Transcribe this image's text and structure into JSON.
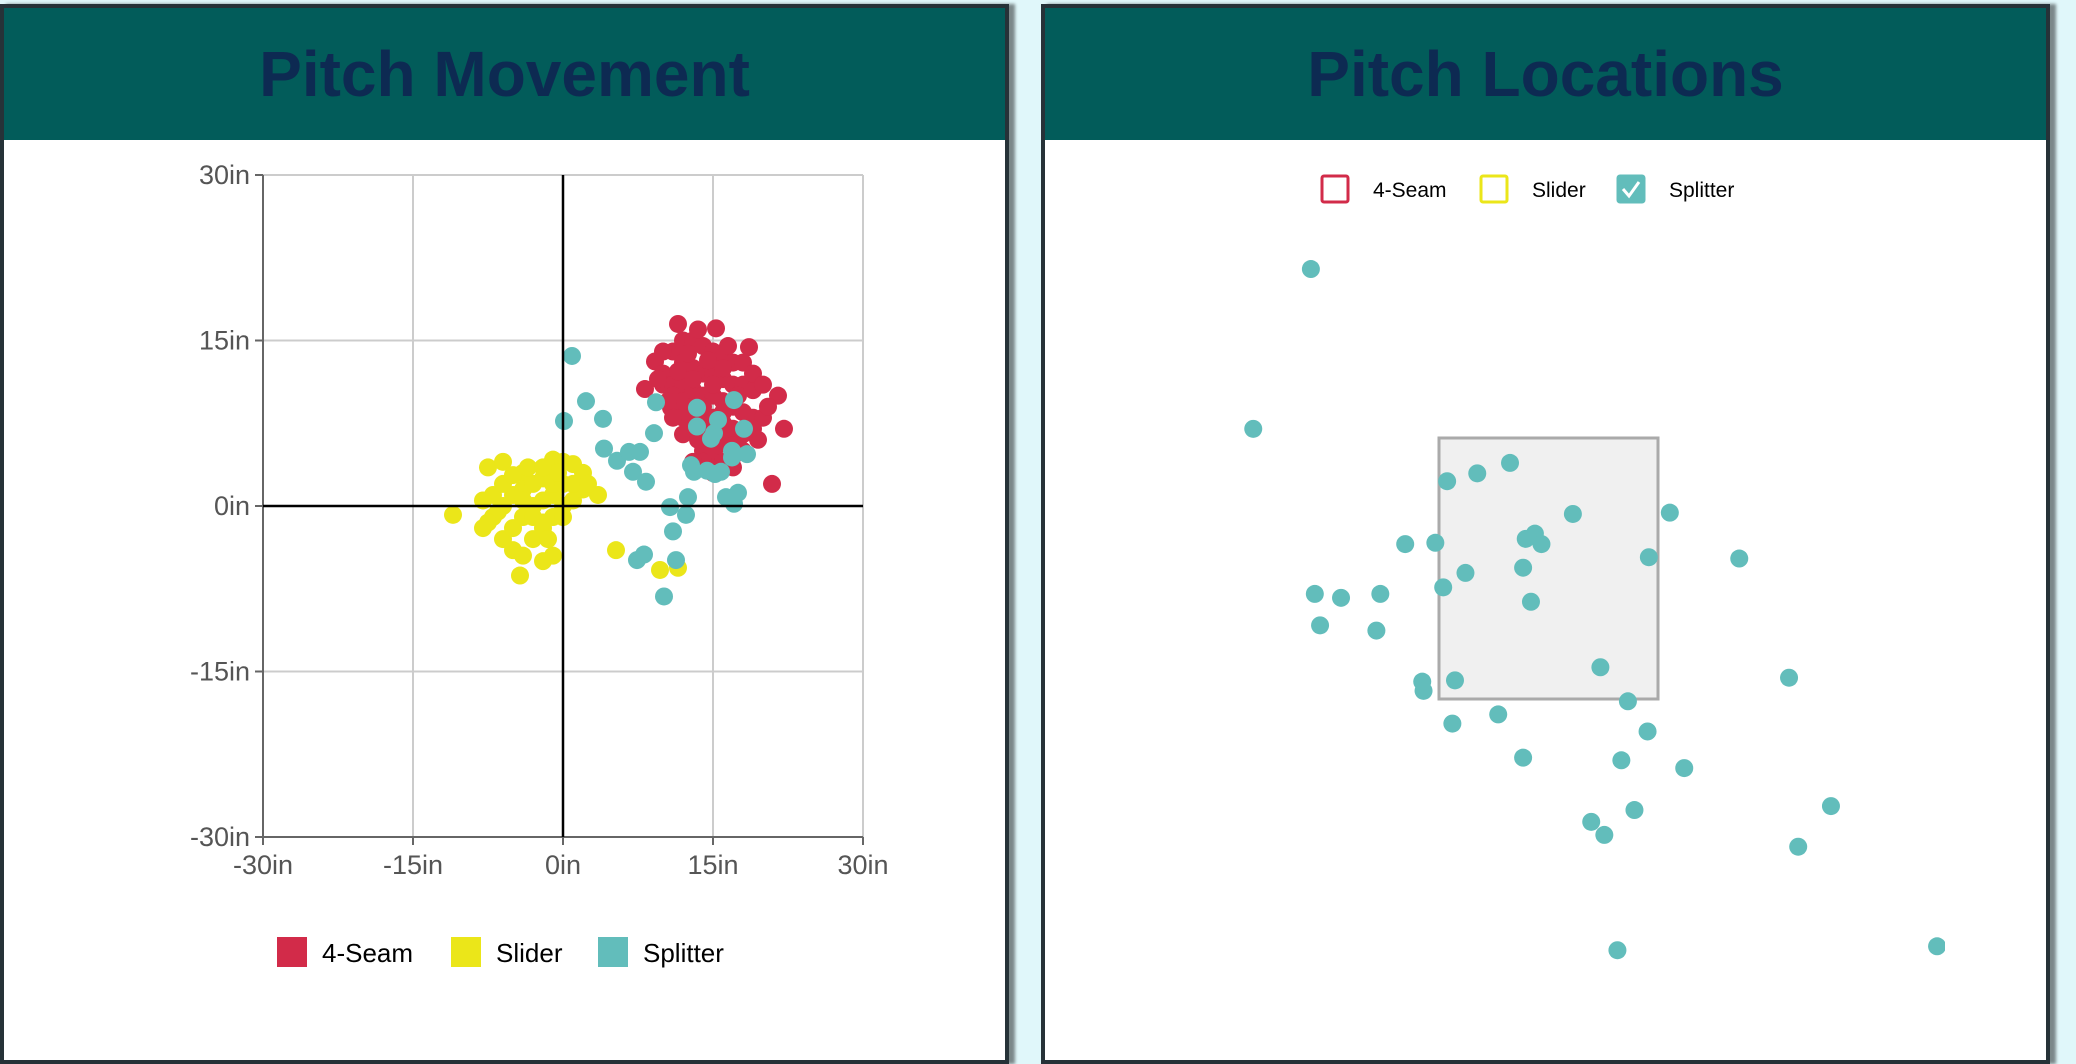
{
  "chart_data": [
    {
      "type": "scatter",
      "title": "Pitch Movement",
      "xlabel": "",
      "ylabel": "",
      "xlim": [
        -30,
        30
      ],
      "ylim": [
        -30,
        30
      ],
      "x_ticks": [
        "-30in",
        "-15in",
        "0in",
        "15in",
        "30in"
      ],
      "y_ticks": [
        "30in",
        "15in",
        "0in",
        "-15in",
        "-30in"
      ],
      "grid": true,
      "legend_position": "bottom",
      "series": [
        {
          "name": "4-Seam",
          "color": "#d22b49",
          "points": [
            [
              11.5,
              16.5
            ],
            [
              15.3,
              16.1
            ],
            [
              18.6,
              14.4
            ],
            [
              21.5,
              10
            ],
            [
              22.1,
              7
            ],
            [
              20.9,
              2
            ],
            [
              10.8,
              8.9
            ],
            [
              8.2,
              10.6
            ],
            [
              9.2,
              13.1
            ],
            [
              10,
              12
            ],
            [
              11,
              14
            ],
            [
              12,
              15
            ],
            [
              13,
              15
            ],
            [
              14,
              14.5
            ],
            [
              15,
              14
            ],
            [
              16,
              13.5
            ],
            [
              17,
              13
            ],
            [
              12,
              13
            ],
            [
              13,
              12.5
            ],
            [
              14,
              12
            ],
            [
              15,
              12
            ],
            [
              16,
              11.5
            ],
            [
              17,
              11
            ],
            [
              18,
              11
            ],
            [
              19,
              10.5
            ],
            [
              10,
              11
            ],
            [
              11,
              11
            ],
            [
              12,
              11
            ],
            [
              13,
              10.5
            ],
            [
              14,
              10
            ],
            [
              15,
              10
            ],
            [
              16,
              9.5
            ],
            [
              17,
              9
            ],
            [
              18,
              8.5
            ],
            [
              19,
              8
            ],
            [
              20,
              8
            ],
            [
              11,
              10
            ],
            [
              12,
              9.5
            ],
            [
              13,
              9
            ],
            [
              14,
              8.5
            ],
            [
              15,
              8
            ],
            [
              16,
              7.5
            ],
            [
              17,
              7
            ],
            [
              18,
              6.5
            ],
            [
              19,
              7
            ],
            [
              12,
              8
            ],
            [
              13,
              7.5
            ],
            [
              14,
              7
            ],
            [
              15,
              6.5
            ],
            [
              16,
              6
            ],
            [
              17,
              5.5
            ],
            [
              18,
              5
            ],
            [
              14,
              5
            ],
            [
              15,
              4.5
            ],
            [
              16,
              4
            ],
            [
              17,
              3.5
            ],
            [
              14,
              4
            ],
            [
              13,
              4
            ],
            [
              15,
              3
            ],
            [
              12,
              6.5
            ],
            [
              11,
              8
            ],
            [
              10.5,
              9.5
            ],
            [
              9.5,
              11.5
            ],
            [
              10,
              14
            ],
            [
              13.5,
              16
            ],
            [
              16.5,
              14.5
            ],
            [
              18,
              13
            ],
            [
              19,
              12
            ],
            [
              20,
              11
            ],
            [
              20.5,
              9
            ],
            [
              19.5,
              6
            ],
            [
              12.5,
              13.8
            ],
            [
              14.5,
              13.2
            ],
            [
              11.5,
              12.2
            ],
            [
              16,
              12.5
            ],
            [
              17.5,
              10
            ],
            [
              13,
              11.5
            ],
            [
              15,
              11
            ],
            [
              14,
              9
            ],
            [
              16,
              8.5
            ],
            [
              13.5,
              6
            ],
            [
              15.5,
              5.5
            ],
            [
              17,
              4.5
            ]
          ]
        },
        {
          "name": "Slider",
          "color": "#ebe619",
          "points": [
            [
              -11,
              -0.8
            ],
            [
              -7.5,
              3.5
            ],
            [
              -6,
              4
            ],
            [
              -4,
              3
            ],
            [
              -1,
              4.2
            ],
            [
              0,
              4
            ],
            [
              1,
              3.8
            ],
            [
              2,
              3
            ],
            [
              3.5,
              1
            ],
            [
              -8,
              -2
            ],
            [
              -7,
              -1
            ],
            [
              -6,
              -3
            ],
            [
              -5,
              -4
            ],
            [
              -4,
              -4.5
            ],
            [
              -3,
              -3
            ],
            [
              -2,
              -2
            ],
            [
              -1,
              -1
            ],
            [
              -1,
              -4.5
            ],
            [
              -4.3,
              -6.3
            ],
            [
              -2,
              -5
            ],
            [
              -5,
              -2
            ],
            [
              -4,
              -1
            ],
            [
              -3,
              0
            ],
            [
              -2,
              0.5
            ],
            [
              -1,
              1
            ],
            [
              0,
              0
            ],
            [
              1,
              0.5
            ],
            [
              2,
              1.5
            ],
            [
              -6,
              0
            ],
            [
              -5,
              1
            ],
            [
              -4,
              1.5
            ],
            [
              -3,
              2
            ],
            [
              -2,
              2.5
            ],
            [
              -1,
              2
            ],
            [
              0,
              2
            ],
            [
              1,
              2
            ],
            [
              -7,
              1
            ],
            [
              -8,
              0.5
            ],
            [
              -6,
              2
            ],
            [
              -5,
              2.8
            ],
            [
              -3,
              -1
            ],
            [
              -2,
              -1.5
            ],
            [
              0,
              -1
            ],
            [
              -4,
              0.5
            ],
            [
              -6.5,
              -0.5
            ],
            [
              -3.5,
              3.5
            ],
            [
              -0.5,
              3
            ],
            [
              2.5,
              2
            ],
            [
              -7.5,
              -1.5
            ],
            [
              -2,
              3.5
            ],
            [
              -1.5,
              -3
            ],
            [
              5.3,
              -4
            ],
            [
              9.7,
              -5.8
            ],
            [
              11.5,
              -5.6
            ]
          ]
        },
        {
          "name": "Splitter",
          "color": "#62bdbb",
          "points": [
            [
              0.9,
              13.6
            ],
            [
              2.3,
              9.5
            ],
            [
              4.0,
              7.9
            ],
            [
              0.1,
              7.7
            ],
            [
              4.1,
              5.2
            ],
            [
              5.4,
              4.1
            ],
            [
              6.6,
              4.9
            ],
            [
              7.7,
              4.9
            ],
            [
              7.0,
              3.1
            ],
            [
              8.3,
              2.2
            ],
            [
              9.1,
              6.6
            ],
            [
              9.3,
              9.4
            ],
            [
              10.7,
              -0.1
            ],
            [
              11.0,
              -2.3
            ],
            [
              12.3,
              -0.8
            ],
            [
              12.5,
              0.8
            ],
            [
              11.3,
              -4.9
            ],
            [
              7.4,
              -4.9
            ],
            [
              8.1,
              -4.4
            ],
            [
              10.1,
              -8.2
            ],
            [
              13.4,
              8.9
            ],
            [
              13.4,
              7.2
            ],
            [
              15.1,
              6.6
            ],
            [
              15.5,
              7.8
            ],
            [
              17.1,
              9.6
            ],
            [
              18.1,
              7.0
            ],
            [
              13.1,
              3.1
            ],
            [
              12.8,
              3.7
            ],
            [
              14.4,
              3.2
            ],
            [
              15.2,
              2.9
            ],
            [
              16.9,
              5.0
            ],
            [
              16.9,
              4.4
            ],
            [
              18.4,
              4.7
            ],
            [
              16.3,
              0.8
            ],
            [
              17.1,
              0.2
            ],
            [
              17.5,
              1.2
            ],
            [
              15.8,
              3.1
            ],
            [
              14.8,
              6.1
            ]
          ]
        }
      ]
    },
    {
      "type": "scatter",
      "title": "Pitch Locations",
      "strike_zone": {
        "x": [
          -0.83,
          0.83
        ],
        "z": [
          1.5,
          3.5
        ]
      },
      "legend_position": "top",
      "series": [
        {
          "name": "4-Seam",
          "color": "#d22b49",
          "checked": false,
          "points": []
        },
        {
          "name": "Slider",
          "color": "#ebe619",
          "checked": false,
          "points": []
        },
        {
          "name": "Splitter",
          "color": "#62bdbb",
          "checked": true,
          "points": [
            [
              -1.81,
              4.79
            ],
            [
              -2.25,
              3.57
            ],
            [
              -0.77,
              3.17
            ],
            [
              -0.54,
              3.23
            ],
            [
              -0.29,
              3.31
            ],
            [
              0.19,
              2.92
            ],
            [
              0.93,
              2.93
            ],
            [
              -1.09,
              2.69
            ],
            [
              -0.86,
              2.7
            ],
            [
              -0.17,
              2.73
            ],
            [
              -0.1,
              2.77
            ],
            [
              -0.05,
              2.69
            ],
            [
              0.77,
              2.59
            ],
            [
              1.46,
              2.58
            ],
            [
              -0.63,
              2.47
            ],
            [
              -0.19,
              2.51
            ],
            [
              -0.8,
              2.36
            ],
            [
              -1.78,
              2.31
            ],
            [
              -1.58,
              2.28
            ],
            [
              -1.28,
              2.31
            ],
            [
              -0.13,
              2.25
            ],
            [
              -1.74,
              2.07
            ],
            [
              -1.31,
              2.03
            ],
            [
              0.4,
              1.75
            ],
            [
              -0.96,
              1.64
            ],
            [
              -0.71,
              1.65
            ],
            [
              -0.95,
              1.57
            ],
            [
              1.84,
              1.67
            ],
            [
              0.61,
              1.49
            ],
            [
              -0.38,
              1.39
            ],
            [
              -0.73,
              1.32
            ],
            [
              0.76,
              1.26
            ],
            [
              -0.19,
              1.06
            ],
            [
              0.56,
              1.04
            ],
            [
              1.04,
              0.98
            ],
            [
              2.16,
              0.69
            ],
            [
              0.66,
              0.66
            ],
            [
              0.33,
              0.57
            ],
            [
              0.43,
              0.47
            ],
            [
              1.91,
              0.38
            ],
            [
              0.53,
              -0.41
            ],
            [
              2.97,
              -0.38
            ]
          ]
        }
      ]
    }
  ]
}
